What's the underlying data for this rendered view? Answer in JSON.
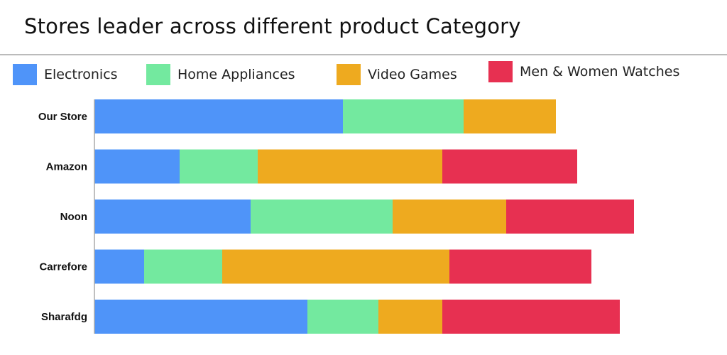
{
  "chart_data": {
    "type": "bar",
    "orientation": "horizontal",
    "stacked": true,
    "title": "Stores leader across different product Category",
    "categories": [
      "Our Store",
      "Amazon",
      "Noon",
      "Carrefore",
      "Sharafdg"
    ],
    "series": [
      {
        "name": "Electronics",
        "color": "#4f94f9",
        "values": [
          35,
          12,
          22,
          7,
          30
        ]
      },
      {
        "name": "Home Appliances",
        "color": "#73e99f",
        "values": [
          17,
          11,
          20,
          11,
          10
        ]
      },
      {
        "name": "Video Games",
        "color": "#eeaa1f",
        "values": [
          13,
          26,
          16,
          32,
          9
        ]
      },
      {
        "name": "Men & Women Watches",
        "color": "#e73051",
        "values": [
          0,
          19,
          18,
          20,
          25
        ]
      }
    ],
    "legend": "top",
    "grid": false
  }
}
